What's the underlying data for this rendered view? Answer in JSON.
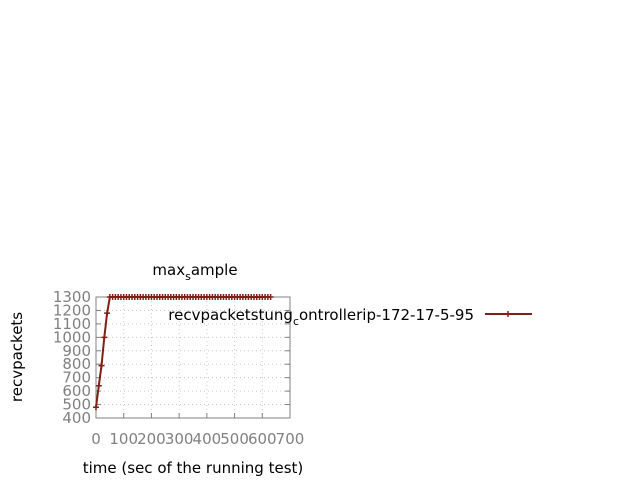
{
  "chart_data": {
    "type": "line",
    "title_main": "max",
    "title_sub": "s",
    "title_rest": "ample",
    "xlabel": "time (sec of the running test)",
    "ylabel": "recvpackets",
    "xlim": [
      0,
      700
    ],
    "ylim": [
      400,
      1300
    ],
    "xticks": [
      0,
      100,
      200,
      300,
      400,
      500,
      600,
      700
    ],
    "yticks": [
      400,
      500,
      600,
      700,
      800,
      900,
      1000,
      1100,
      1200,
      1300
    ],
    "grid": true,
    "legend_position": "right",
    "series": [
      {
        "legend_parts": [
          "recvpacketstung",
          "c",
          "ontrollerip-172-17-5-95"
        ],
        "color": "#7f1f16",
        "marker": "plus",
        "x": [
          0,
          10,
          20,
          30,
          40,
          50,
          60,
          70,
          80,
          90,
          100,
          110,
          120,
          130,
          140,
          150,
          160,
          170,
          180,
          190,
          200,
          210,
          220,
          230,
          240,
          250,
          260,
          270,
          280,
          290,
          300,
          310,
          320,
          330,
          340,
          350,
          360,
          370,
          380,
          390,
          400,
          410,
          420,
          430,
          440,
          450,
          460,
          470,
          480,
          490,
          500,
          510,
          520,
          530,
          540,
          550,
          560,
          570,
          580,
          590,
          600,
          610,
          620,
          630
        ],
        "y": [
          480,
          640,
          790,
          1000,
          1180,
          1300,
          1300,
          1300,
          1300,
          1300,
          1300,
          1300,
          1300,
          1300,
          1300,
          1300,
          1300,
          1300,
          1300,
          1300,
          1300,
          1300,
          1300,
          1300,
          1300,
          1300,
          1300,
          1300,
          1300,
          1300,
          1300,
          1300,
          1300,
          1300,
          1300,
          1300,
          1300,
          1300,
          1300,
          1300,
          1300,
          1300,
          1300,
          1300,
          1300,
          1300,
          1300,
          1300,
          1300,
          1300,
          1300,
          1300,
          1300,
          1300,
          1300,
          1300,
          1300,
          1300,
          1300,
          1300,
          1300,
          1300,
          1300,
          1300
        ]
      }
    ]
  }
}
